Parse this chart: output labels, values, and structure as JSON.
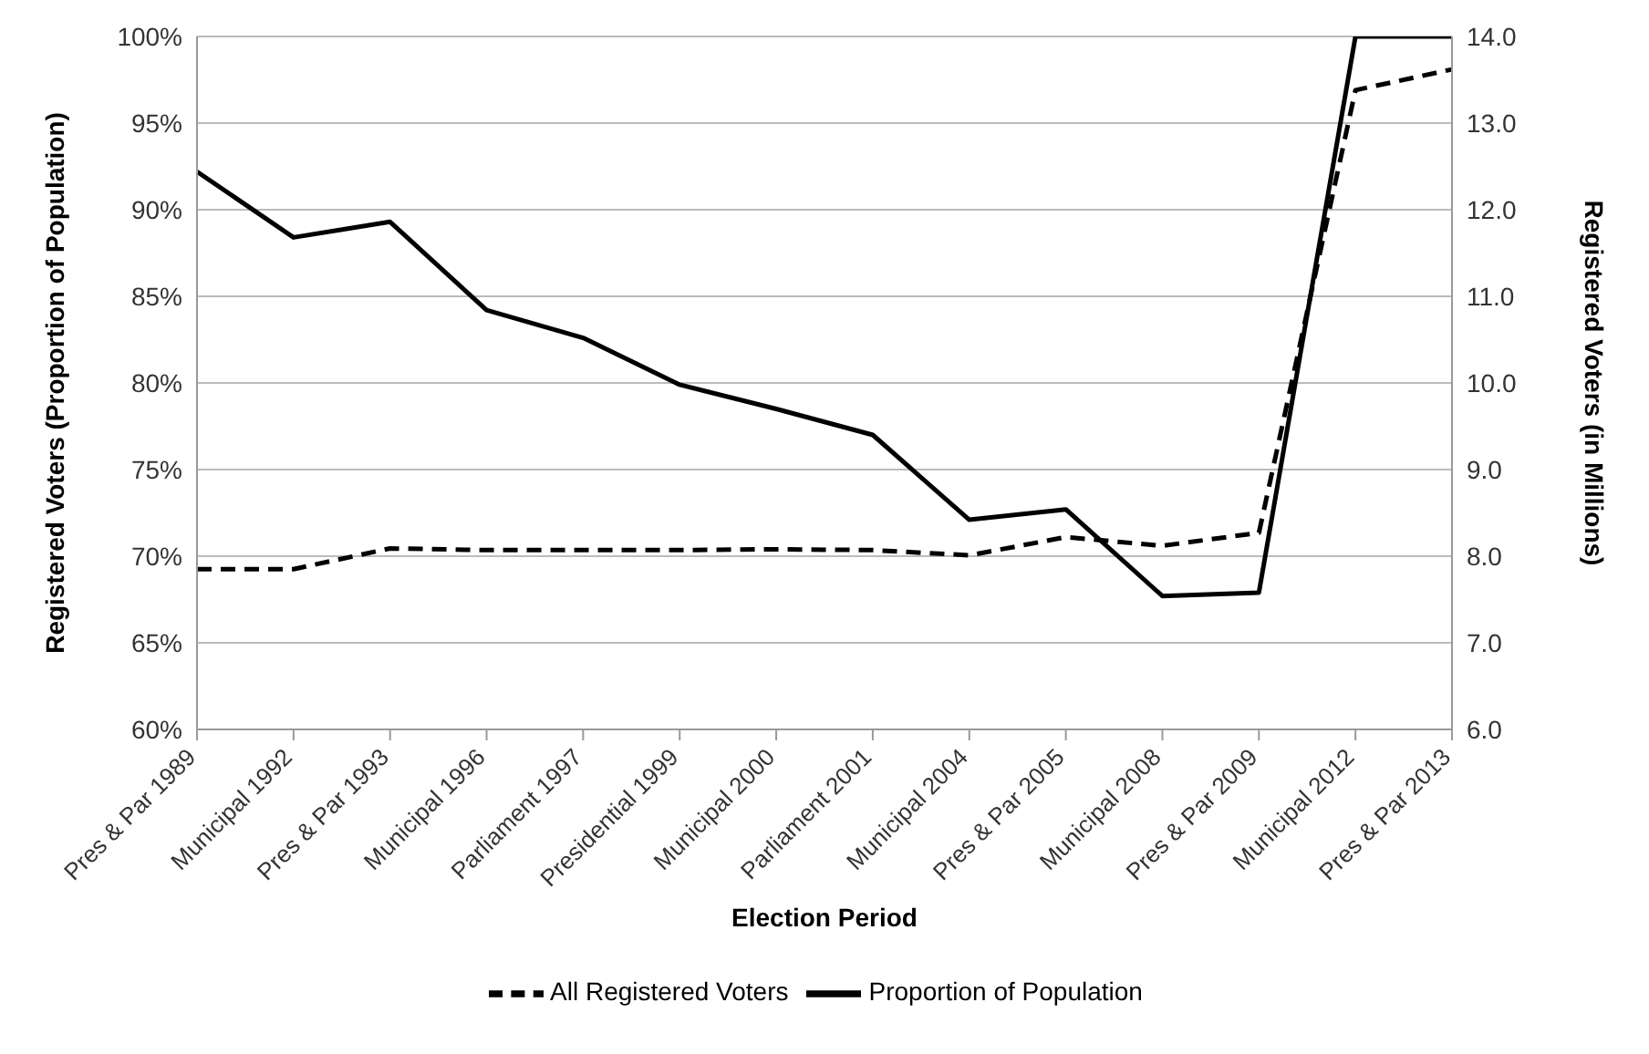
{
  "chart_data": {
    "type": "line",
    "xlabel": "Election Period",
    "ylabel": "Registered Voters (Proportion of Population)",
    "y2label": "Registered Voters (in Millions)",
    "categories": [
      "Pres & Par 1989",
      "Municipal 1992",
      "Pres & Par  1993",
      "Municipal 1996",
      "Parliament 1997",
      "Presidential 1999",
      "Municipal 2000",
      "Parliament 2001",
      "Municipal 2004",
      "Pres & Par  2005",
      "Municipal 2008",
      "Pres & Par  2009",
      "Municipal 2012",
      "Pres & Par  2013"
    ],
    "series": [
      {
        "name": "Proportion of Population",
        "color": "#000000",
        "line_style": "solid",
        "values": [
          92.2,
          88.4,
          89.3,
          84.2,
          82.6,
          79.9,
          78.5,
          77.0,
          72.1,
          72.7,
          67.7,
          67.9,
          100,
          100
        ]
      },
      {
        "name": "All Registered Voters",
        "color": "#000000",
        "line_style": "dashed",
        "axis": "y2",
        "values": [
          7.85,
          7.85,
          8.09,
          8.07,
          8.07,
          8.07,
          8.08,
          8.07,
          8.01,
          8.22,
          8.12,
          8.27,
          13.38,
          13.62
        ]
      }
    ],
    "ylim": [
      60,
      100
    ],
    "yticks": [
      {
        "value": 60,
        "label": "60%"
      },
      {
        "value": 65,
        "label": "65%"
      },
      {
        "value": 70,
        "label": "70%"
      },
      {
        "value": 75,
        "label": "75%"
      },
      {
        "value": 80,
        "label": "80%"
      },
      {
        "value": 85,
        "label": "85%"
      },
      {
        "value": 90,
        "label": "90%"
      },
      {
        "value": 95,
        "label": "95%"
      },
      {
        "value": 100,
        "label": "100%"
      }
    ],
    "y2lim": [
      6,
      14
    ],
    "y2ticks": [
      {
        "value": 6,
        "label": "6.0"
      },
      {
        "value": 7,
        "label": "7.0"
      },
      {
        "value": 8,
        "label": "8.0"
      },
      {
        "value": 9,
        "label": "9.0"
      },
      {
        "value": 10,
        "label": "10.0"
      },
      {
        "value": 11,
        "label": "11.0"
      },
      {
        "value": 12,
        "label": "12.0"
      },
      {
        "value": 13,
        "label": "13.0"
      },
      {
        "value": 14,
        "label": "14.0"
      }
    ],
    "grid": "y",
    "legend": "bottom",
    "marker": "none"
  }
}
